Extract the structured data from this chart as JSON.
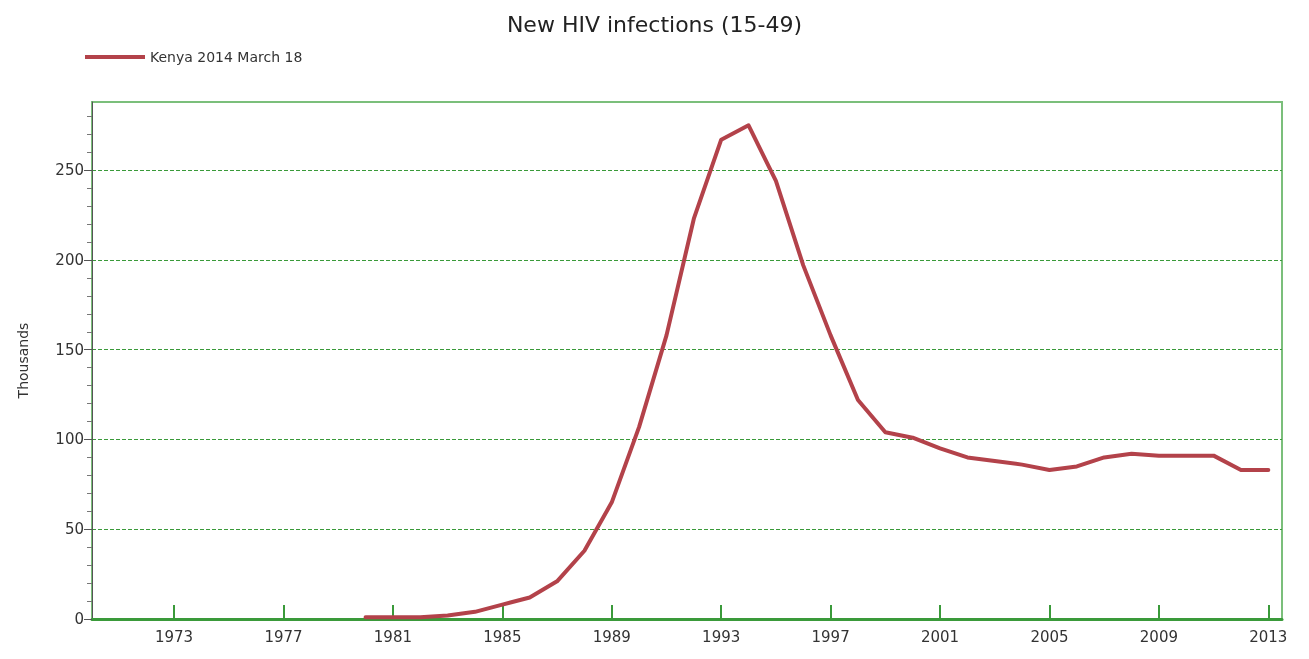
{
  "chart_data": {
    "type": "line",
    "title": "New HIV infections (15-49)",
    "ylabel": "Thousands",
    "x": [
      1980,
      1981,
      1982,
      1983,
      1984,
      1985,
      1986,
      1987,
      1988,
      1989,
      1990,
      1991,
      1992,
      1993,
      1994,
      1995,
      1996,
      1997,
      1998,
      1999,
      2000,
      2001,
      2002,
      2003,
      2004,
      2005,
      2006,
      2007,
      2008,
      2009,
      2010,
      2011,
      2012,
      2013
    ],
    "series": [
      {
        "name": "Kenya 2014 March 18",
        "color": "#b3424a",
        "values": [
          1,
          1,
          1,
          2,
          4,
          8,
          12,
          21,
          38,
          65,
          107,
          158,
          223,
          267,
          275,
          244,
          197,
          158,
          122,
          104,
          101,
          95,
          90,
          88,
          86,
          83,
          85,
          90,
          92,
          91,
          91,
          91,
          83,
          83
        ]
      }
    ],
    "xlim": [
      1970,
      2013.5
    ],
    "xticks": [
      1973,
      1977,
      1981,
      1985,
      1989,
      1993,
      1997,
      2001,
      2005,
      2009,
      2013
    ],
    "ylim": [
      0,
      288
    ],
    "yticks": [
      0,
      50,
      100,
      150,
      200,
      250
    ],
    "grid": "y",
    "legend": "top left",
    "marker": "none",
    "line_style": "solid"
  }
}
